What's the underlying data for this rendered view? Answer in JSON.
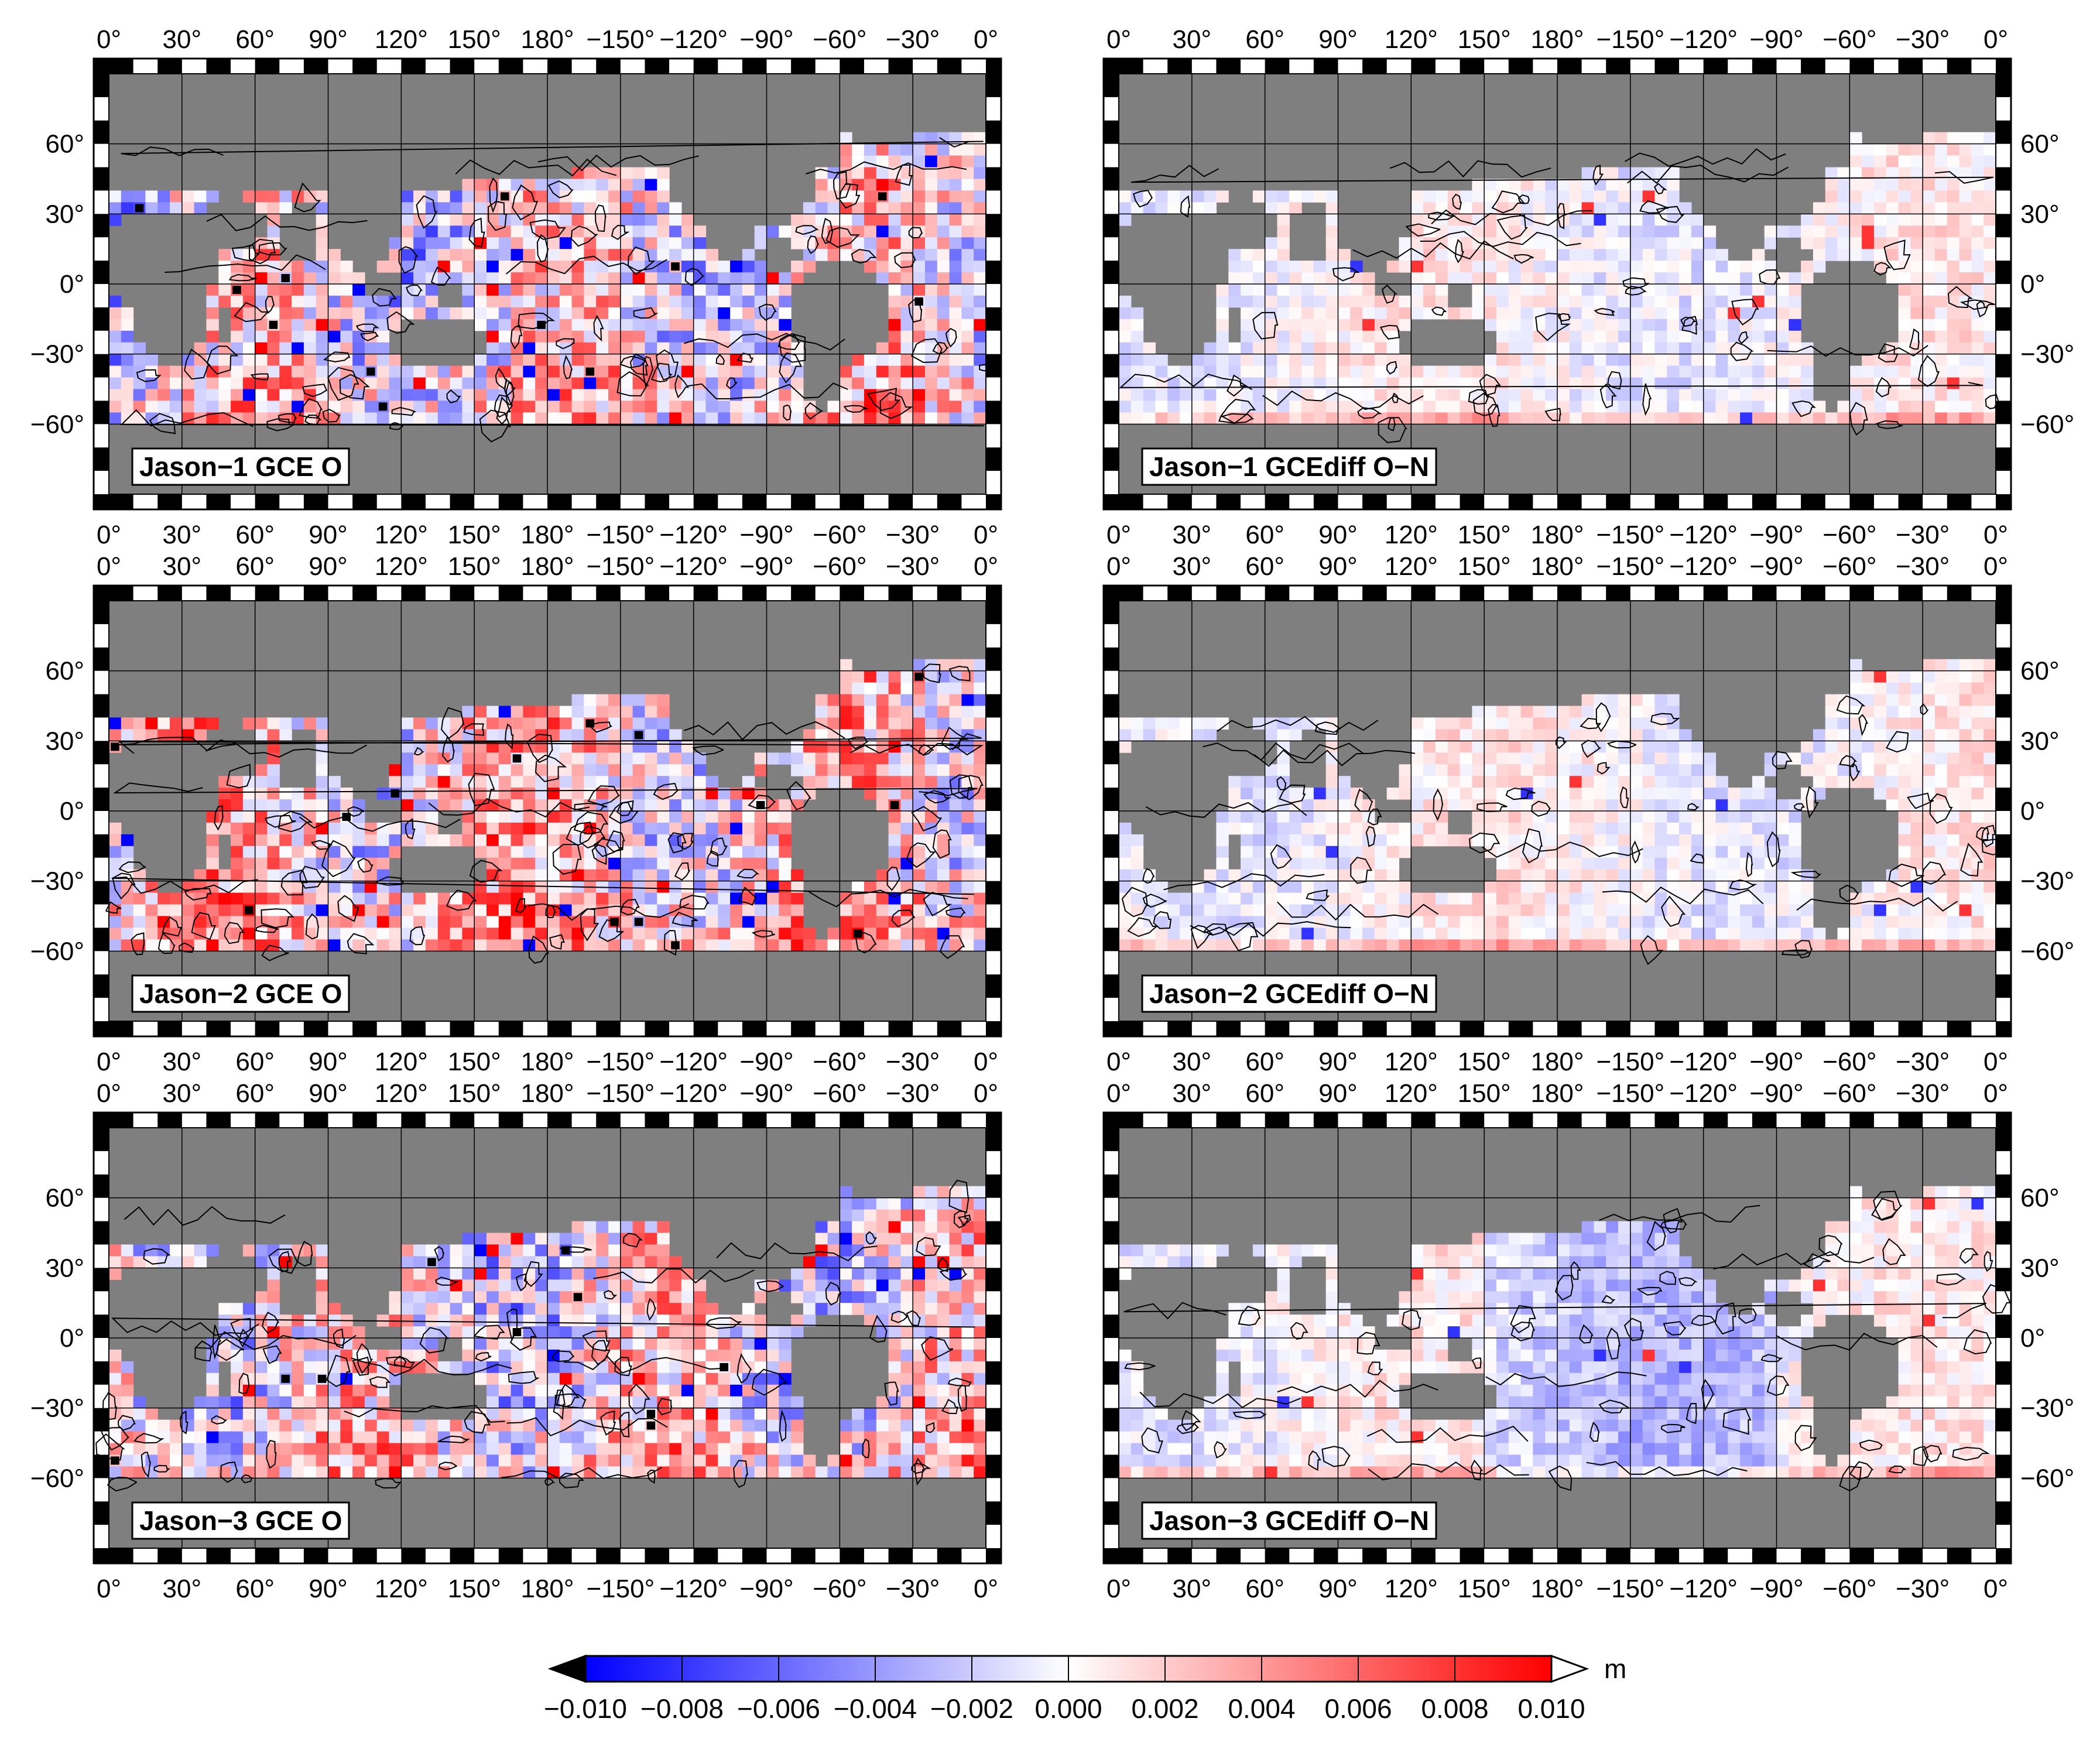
{
  "panels": [
    {
      "label": "Jason−1 GCE O",
      "variant": "gce",
      "seed": 11
    },
    {
      "label": "Jason−1 GCEdiff O−N",
      "variant": "diff",
      "seed": 23
    },
    {
      "label": "Jason−2 GCE O",
      "variant": "gce",
      "seed": 37
    },
    {
      "label": "Jason−2 GCEdiff O−N",
      "variant": "diff",
      "seed": 41
    },
    {
      "label": "Jason−3 GCE O",
      "variant": "gce",
      "seed": 53
    },
    {
      "label": "Jason−3 GCEdiff O−N",
      "variant": "diff",
      "seed": 67
    }
  ],
  "lon_ticks": [
    "0°",
    "30°",
    "60°",
    "90°",
    "120°",
    "150°",
    "180°",
    "−150°",
    "−120°",
    "−90°",
    "−60°",
    "−30°",
    "0°"
  ],
  "lat_ticks": [
    "60°",
    "30°",
    "0°",
    "−30°",
    "−60°"
  ],
  "lat_values": [
    60,
    30,
    0,
    -30,
    -60
  ],
  "colorbar": {
    "unit": "m",
    "min": -0.01,
    "max": 0.01,
    "ticks": [
      "−0.010",
      "−0.008",
      "−0.006",
      "−0.004",
      "−0.002",
      "0.000",
      "0.002",
      "0.004",
      "0.006",
      "0.008",
      "0.010"
    ],
    "low_color": "#0000ff",
    "mid_color": "#ffffff",
    "high_color": "#ff0000",
    "under_color": "#000000",
    "over_color": "#ffffff"
  },
  "colors": {
    "land": "#7f7f7f",
    "frame_dark": "#000000",
    "frame_light": "#ffffff",
    "grid": "#000000",
    "contour": "#000000"
  }
}
